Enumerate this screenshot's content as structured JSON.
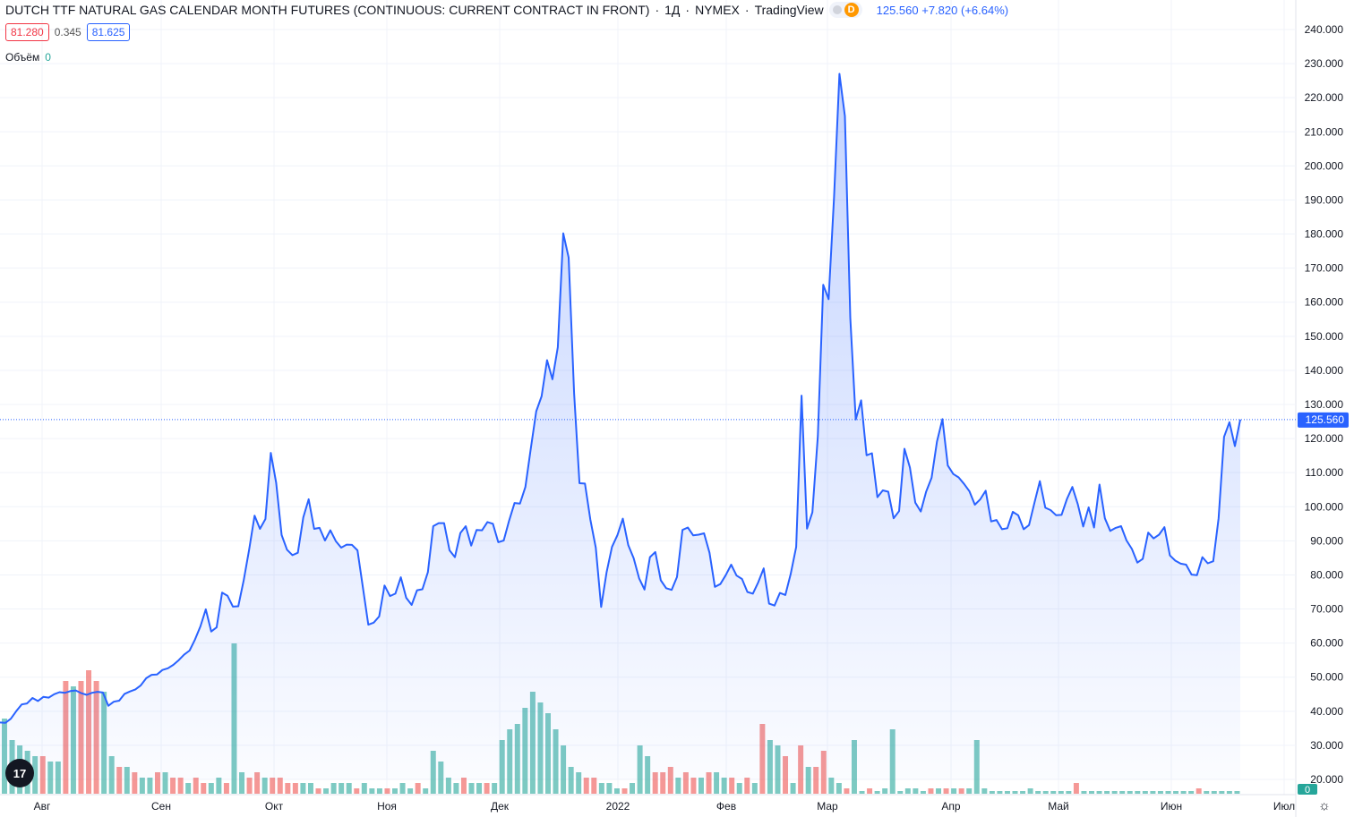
{
  "header": {
    "title": "DUTCH TTF NATURAL GAS CALENDAR MONTH FUTURES (CONTINUOUS: CURRENT CONTRACT IN FRONT)",
    "interval": "1Д",
    "exchange": "NYMEX",
    "provider": "TradingView",
    "badge": "D",
    "last": "125.560",
    "change": "+7.820",
    "change_pct": "(+6.64%)",
    "sep": "·"
  },
  "quote_box": {
    "bid": "81.280",
    "spread": "0.345",
    "ask": "81.625"
  },
  "volume": {
    "label": "Объём",
    "value": "0"
  },
  "logo": "17",
  "colors": {
    "line": "#2962ff",
    "up_volume": "#26a69a",
    "down_volume": "#ef5350",
    "grid": "#f0f3fa",
    "price_label_bg": "#2962ff"
  },
  "chart_data": {
    "type": "area",
    "title": "DUTCH TTF NATURAL GAS CALENDAR MONTH FUTURES (CONTINUOUS: CURRENT CONTRACT IN FRONT)",
    "xlabel": "",
    "ylabel": "",
    "ylim": [
      17,
      243
    ],
    "y_ticks": [
      "240.000",
      "230.000",
      "220.000",
      "210.000",
      "200.000",
      "190.000",
      "180.000",
      "170.000",
      "160.000",
      "150.000",
      "140.000",
      "130.000",
      "120.000",
      "110.000",
      "100.000",
      "90.000",
      "80.000",
      "70.000",
      "60.000",
      "50.000",
      "40.000",
      "30.000",
      "20.000"
    ],
    "x_tick_labels": [
      "Авг",
      "Сен",
      "Окт",
      "Ноя",
      "Дек",
      "2022",
      "Фев",
      "Мар",
      "Апр",
      "Май",
      "Июн",
      "Июл"
    ],
    "last_price_label": "125.560",
    "volume_axis_label": "0",
    "grid": true,
    "series": [
      {
        "values": [
          36.7,
          36.6,
          37.8,
          40.0,
          42.0,
          42.3,
          43.9,
          43.0,
          44.2,
          44.0,
          45.0,
          45.6,
          45.4,
          45.9,
          46.1,
          45.3,
          44.8,
          45.4,
          45.7,
          45.5,
          41.6,
          42.8,
          43.1,
          45.1,
          45.8,
          46.4,
          47.6,
          49.7,
          50.7,
          50.8,
          52.1,
          52.6,
          53.6,
          55.0,
          56.6,
          57.8,
          61.0,
          64.9,
          69.9,
          63.4,
          64.6,
          74.8,
          73.9,
          70.7,
          70.8,
          78.5,
          87.4,
          97.4,
          93.5,
          96.4,
          115.8,
          107.0,
          91.7,
          87.4,
          85.8,
          86.5,
          96.9,
          102.2,
          93.5,
          93.8,
          90.1,
          93.1,
          89.9,
          88.0,
          88.9,
          88.8,
          87.2,
          76.4,
          65.4,
          66.0,
          67.8,
          76.9,
          73.8,
          74.5,
          79.3,
          73.3,
          71.2,
          75.5,
          75.8,
          80.8,
          94.3,
          95.2,
          95.2,
          87.2,
          85.2,
          92.3,
          94.3,
          88.6,
          93.2,
          93.1,
          95.5,
          95.0,
          89.6,
          90.1,
          95.9,
          101.1,
          100.9,
          105.8,
          117.0,
          128.0,
          132.4,
          143.0,
          137.4,
          146.8,
          180.2,
          173.1,
          133.3,
          106.9,
          106.8,
          96.3,
          88.0,
          70.6,
          80.8,
          88.2,
          91.7,
          96.5,
          88.7,
          84.9,
          79.0,
          75.7,
          85.2,
          86.7,
          78.4,
          76.1,
          75.6,
          79.4,
          93.2,
          93.9,
          91.6,
          91.8,
          92.2,
          86.5,
          76.5,
          77.3,
          79.9,
          83.0,
          79.8,
          78.8,
          75.0,
          74.5,
          77.8,
          81.9,
          71.6,
          71.0,
          74.7,
          74.1,
          80.3,
          88.2,
          132.6,
          93.6,
          98.4,
          120.8,
          165.1,
          160.9,
          190.9,
          227.0,
          214.6,
          155.5,
          125.6,
          131.2,
          115.1,
          115.7,
          102.8,
          104.8,
          104.4,
          96.6,
          98.7,
          117.0,
          111.5,
          101.2,
          98.6,
          104.4,
          108.5,
          119.1,
          125.7,
          112.1,
          109.6,
          108.6,
          106.7,
          104.5,
          100.6,
          102.2,
          104.7,
          95.7,
          96.1,
          93.4,
          93.7,
          98.5,
          97.5,
          93.4,
          94.6,
          101.2,
          107.5,
          99.7,
          99.0,
          97.5,
          97.6,
          102.3,
          105.8,
          100.7,
          94.2,
          99.8,
          93.9,
          106.5,
          96.6,
          92.9,
          93.8,
          94.3,
          90.1,
          87.6,
          83.6,
          84.7,
          92.4,
          90.7,
          91.8,
          94.0,
          85.7,
          84.2,
          83.3,
          83.0,
          80.1,
          79.9,
          85.2,
          83.4,
          84.0,
          96.6,
          120.5,
          124.8,
          117.8,
          125.6
        ]
      }
    ],
    "volume_bars": [
      {
        "v": 14,
        "up": true
      },
      {
        "v": 10,
        "up": true
      },
      {
        "v": 9,
        "up": true
      },
      {
        "v": 8,
        "up": true
      },
      {
        "v": 7,
        "up": true
      },
      {
        "v": 7,
        "up": false
      },
      {
        "v": 6,
        "up": true
      },
      {
        "v": 6,
        "up": true
      },
      {
        "v": 21,
        "up": false
      },
      {
        "v": 20,
        "up": true
      },
      {
        "v": 21,
        "up": false
      },
      {
        "v": 23,
        "up": false
      },
      {
        "v": 21,
        "up": false
      },
      {
        "v": 19,
        "up": true
      },
      {
        "v": 7,
        "up": true
      },
      {
        "v": 5,
        "up": false
      },
      {
        "v": 5,
        "up": true
      },
      {
        "v": 4,
        "up": false
      },
      {
        "v": 3,
        "up": true
      },
      {
        "v": 3,
        "up": true
      },
      {
        "v": 4,
        "up": false
      },
      {
        "v": 4,
        "up": true
      },
      {
        "v": 3,
        "up": false
      },
      {
        "v": 3,
        "up": false
      },
      {
        "v": 2,
        "up": true
      },
      {
        "v": 3,
        "up": false
      },
      {
        "v": 2,
        "up": false
      },
      {
        "v": 2,
        "up": true
      },
      {
        "v": 3,
        "up": true
      },
      {
        "v": 2,
        "up": false
      },
      {
        "v": 28,
        "up": true
      },
      {
        "v": 4,
        "up": true
      },
      {
        "v": 3,
        "up": false
      },
      {
        "v": 4,
        "up": false
      },
      {
        "v": 3,
        "up": true
      },
      {
        "v": 3,
        "up": false
      },
      {
        "v": 3,
        "up": false
      },
      {
        "v": 2,
        "up": false
      },
      {
        "v": 2,
        "up": false
      },
      {
        "v": 2,
        "up": true
      },
      {
        "v": 2,
        "up": true
      },
      {
        "v": 1,
        "up": false
      },
      {
        "v": 1,
        "up": true
      },
      {
        "v": 2,
        "up": true
      },
      {
        "v": 2,
        "up": true
      },
      {
        "v": 2,
        "up": true
      },
      {
        "v": 1,
        "up": false
      },
      {
        "v": 2,
        "up": true
      },
      {
        "v": 1,
        "up": true
      },
      {
        "v": 1,
        "up": true
      },
      {
        "v": 1,
        "up": false
      },
      {
        "v": 1,
        "up": true
      },
      {
        "v": 2,
        "up": true
      },
      {
        "v": 1,
        "up": true
      },
      {
        "v": 2,
        "up": false
      },
      {
        "v": 1,
        "up": true
      },
      {
        "v": 8,
        "up": true
      },
      {
        "v": 6,
        "up": true
      },
      {
        "v": 3,
        "up": true
      },
      {
        "v": 2,
        "up": true
      },
      {
        "v": 3,
        "up": false
      },
      {
        "v": 2,
        "up": true
      },
      {
        "v": 2,
        "up": true
      },
      {
        "v": 2,
        "up": false
      },
      {
        "v": 2,
        "up": true
      },
      {
        "v": 10,
        "up": true
      },
      {
        "v": 12,
        "up": true
      },
      {
        "v": 13,
        "up": true
      },
      {
        "v": 16,
        "up": true
      },
      {
        "v": 19,
        "up": true
      },
      {
        "v": 17,
        "up": true
      },
      {
        "v": 15,
        "up": true
      },
      {
        "v": 12,
        "up": true
      },
      {
        "v": 9,
        "up": true
      },
      {
        "v": 5,
        "up": true
      },
      {
        "v": 4,
        "up": true
      },
      {
        "v": 3,
        "up": false
      },
      {
        "v": 3,
        "up": false
      },
      {
        "v": 2,
        "up": true
      },
      {
        "v": 2,
        "up": true
      },
      {
        "v": 1,
        "up": true
      },
      {
        "v": 1,
        "up": false
      },
      {
        "v": 2,
        "up": true
      },
      {
        "v": 9,
        "up": true
      },
      {
        "v": 7,
        "up": true
      },
      {
        "v": 4,
        "up": false
      },
      {
        "v": 4,
        "up": false
      },
      {
        "v": 5,
        "up": false
      },
      {
        "v": 3,
        "up": true
      },
      {
        "v": 4,
        "up": false
      },
      {
        "v": 3,
        "up": false
      },
      {
        "v": 3,
        "up": true
      },
      {
        "v": 4,
        "up": false
      },
      {
        "v": 4,
        "up": true
      },
      {
        "v": 3,
        "up": true
      },
      {
        "v": 3,
        "up": false
      },
      {
        "v": 2,
        "up": true
      },
      {
        "v": 3,
        "up": false
      },
      {
        "v": 2,
        "up": true
      },
      {
        "v": 13,
        "up": false
      },
      {
        "v": 10,
        "up": true
      },
      {
        "v": 9,
        "up": true
      },
      {
        "v": 7,
        "up": false
      },
      {
        "v": 2,
        "up": true
      },
      {
        "v": 9,
        "up": false
      },
      {
        "v": 5,
        "up": true
      },
      {
        "v": 5,
        "up": false
      },
      {
        "v": 8,
        "up": false
      },
      {
        "v": 3,
        "up": true
      },
      {
        "v": 2,
        "up": true
      },
      {
        "v": 1,
        "up": false
      },
      {
        "v": 10,
        "up": true
      },
      {
        "v": 0.5,
        "up": true
      },
      {
        "v": 1,
        "up": false
      },
      {
        "v": 0.5,
        "up": true
      },
      {
        "v": 1,
        "up": true
      },
      {
        "v": 12,
        "up": true
      },
      {
        "v": 0.5,
        "up": true
      },
      {
        "v": 1,
        "up": true
      },
      {
        "v": 1,
        "up": true
      },
      {
        "v": 0.5,
        "up": true
      },
      {
        "v": 1,
        "up": false
      },
      {
        "v": 1,
        "up": true
      },
      {
        "v": 1,
        "up": false
      },
      {
        "v": 1,
        "up": true
      },
      {
        "v": 1,
        "up": false
      },
      {
        "v": 1,
        "up": true
      },
      {
        "v": 10,
        "up": true
      },
      {
        "v": 1,
        "up": true
      },
      {
        "v": 0.5,
        "up": true
      },
      {
        "v": 0.5,
        "up": true
      },
      {
        "v": 0.5,
        "up": true
      },
      {
        "v": 0.5,
        "up": true
      },
      {
        "v": 0.5,
        "up": true
      },
      {
        "v": 1,
        "up": true
      },
      {
        "v": 0.5,
        "up": true
      },
      {
        "v": 0.5,
        "up": true
      },
      {
        "v": 0.5,
        "up": true
      },
      {
        "v": 0.5,
        "up": true
      },
      {
        "v": 0.5,
        "up": true
      },
      {
        "v": 2,
        "up": false
      },
      {
        "v": 0.5,
        "up": true
      },
      {
        "v": 0.5,
        "up": true
      },
      {
        "v": 0.5,
        "up": true
      },
      {
        "v": 0.5,
        "up": true
      },
      {
        "v": 0.5,
        "up": true
      },
      {
        "v": 0.5,
        "up": true
      },
      {
        "v": 0.5,
        "up": true
      },
      {
        "v": 0.5,
        "up": true
      },
      {
        "v": 0.5,
        "up": true
      },
      {
        "v": 0.5,
        "up": true
      },
      {
        "v": 0.5,
        "up": true
      },
      {
        "v": 0.5,
        "up": true
      },
      {
        "v": 0.5,
        "up": true
      },
      {
        "v": 0.5,
        "up": true
      },
      {
        "v": 0.5,
        "up": true
      },
      {
        "v": 1,
        "up": false
      },
      {
        "v": 0.5,
        "up": true
      },
      {
        "v": 0.5,
        "up": true
      },
      {
        "v": 0.5,
        "up": true
      },
      {
        "v": 0.5,
        "up": true
      },
      {
        "v": 0.5,
        "up": true
      }
    ]
  }
}
